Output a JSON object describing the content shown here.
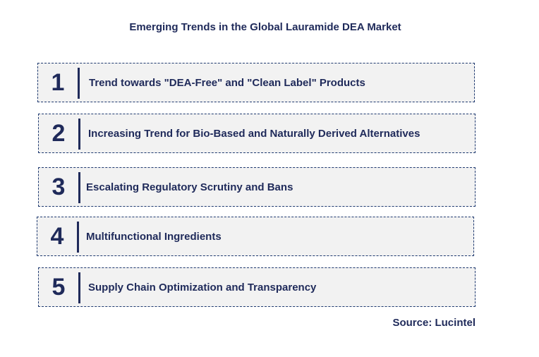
{
  "title": "Emerging Trends in the Global Lauramide DEA Market",
  "trends": [
    {
      "number": "1",
      "label": "Trend towards \"DEA-Free\" and \"Clean Label\" Products"
    },
    {
      "number": "2",
      "label": "Increasing Trend for Bio-Based and Naturally Derived Alternatives"
    },
    {
      "number": "3",
      "label": "Escalating Regulatory Scrutiny and Bans"
    },
    {
      "number": "4",
      "label": "Multifunctional Ingredients"
    },
    {
      "number": "5",
      "label": "Supply Chain Optimization and Transparency"
    }
  ],
  "source": "Source: Lucintel",
  "colors": {
    "text": "#1f2a5a",
    "box_fill": "#f2f2f2",
    "border": "#1f3a70"
  }
}
